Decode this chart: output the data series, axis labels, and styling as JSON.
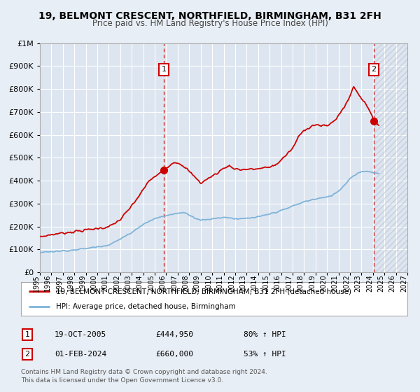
{
  "title": "19, BELMONT CRESCENT, NORTHFIELD, BIRMINGHAM, B31 2FH",
  "subtitle": "Price paid vs. HM Land Registry's House Price Index (HPI)",
  "bg_color": "#e8eef5",
  "plot_bg_color": "#dde6f0",
  "grid_color": "#ffffff",
  "ylim": [
    0,
    1000000
  ],
  "yticks": [
    0,
    100000,
    200000,
    300000,
    400000,
    500000,
    600000,
    700000,
    800000,
    900000,
    1000000
  ],
  "xmin_year": 1995,
  "xmax_year": 2027,
  "xticks_years": [
    1995,
    1996,
    1997,
    1998,
    1999,
    2000,
    2001,
    2002,
    2003,
    2004,
    2005,
    2006,
    2007,
    2008,
    2009,
    2010,
    2011,
    2012,
    2013,
    2014,
    2015,
    2016,
    2017,
    2018,
    2019,
    2020,
    2021,
    2022,
    2023,
    2024,
    2025,
    2026,
    2027
  ],
  "property_color": "#cc0000",
  "hpi_color": "#7fb3d9",
  "marker_color": "#cc0000",
  "sale1_year": 2005.8,
  "sale1_price": 444950,
  "sale1_label": "1",
  "sale1_date": "19-OCT-2005",
  "sale1_amount": "£444,950",
  "sale1_hpi": "80% ↑ HPI",
  "sale2_year": 2024.08,
  "sale2_price": 660000,
  "sale2_label": "2",
  "sale2_date": "01-FEB-2024",
  "sale2_amount": "£660,000",
  "sale2_hpi": "53% ↑ HPI",
  "legend_line1": "19, BELMONT CRESCENT, NORTHFIELD, BIRMINGHAM, B31 2FH (detached house)",
  "legend_line2": "HPI: Average price, detached house, Birmingham",
  "footnote1": "Contains HM Land Registry data © Crown copyright and database right 2024.",
  "footnote2": "This data is licensed under the Open Government Licence v3.0."
}
